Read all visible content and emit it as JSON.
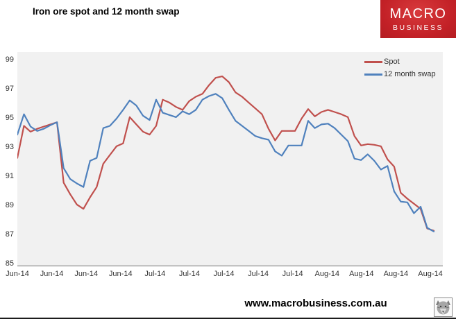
{
  "header": {
    "title": "Iron ore spot and 12 month swap"
  },
  "logo": {
    "line1": "MACRO",
    "line2": "BUSINESS",
    "bg_color": "#C32127",
    "text_color": "#FFFFFF"
  },
  "chart_data": {
    "type": "line",
    "title": "Iron ore spot and 12 month swap",
    "xlabel": "",
    "ylabel": "",
    "ylim": [
      85,
      99
    ],
    "yticks": [
      99,
      97,
      95,
      93,
      91,
      89,
      87,
      85
    ],
    "grid": false,
    "plot_bg": "#F1F1F1",
    "axis_color": "#6E6E6E",
    "legend_position": "top-right-inside",
    "x_labels": [
      "Jun-14",
      "Jun-14",
      "Jun-14",
      "Jun-14",
      "Jul-14",
      "Jul-14",
      "Jul-14",
      "Jul-14",
      "Jul-14",
      "Aug-14",
      "Aug-14",
      "Aug-14",
      "Aug-14"
    ],
    "series": [
      {
        "name": "Spot",
        "color": "#C0504D",
        "values": [
          92.3,
          94.5,
          94.1,
          94.3,
          94.45,
          94.6,
          94.75,
          90.6,
          89.8,
          89.1,
          88.8,
          89.6,
          90.3,
          91.9,
          92.5,
          93.1,
          93.3,
          95.1,
          94.6,
          94.1,
          93.9,
          94.5,
          96.3,
          96.1,
          95.8,
          95.6,
          96.2,
          96.5,
          96.7,
          97.3,
          97.8,
          97.9,
          97.5,
          96.8,
          96.5,
          96.1,
          95.7,
          95.3,
          94.3,
          93.5,
          94.15,
          94.15,
          94.15,
          95.0,
          95.65,
          95.15,
          95.45,
          95.6,
          95.45,
          95.3,
          95.1,
          93.8,
          93.15,
          93.25,
          93.2,
          93.1,
          92.2,
          91.7,
          89.9,
          89.5,
          89.15,
          88.8,
          87.45,
          87.3
        ]
      },
      {
        "name": "12 month swap",
        "color": "#4F81BD",
        "values": [
          93.9,
          95.3,
          94.45,
          94.15,
          94.3,
          94.55,
          94.75,
          91.6,
          90.85,
          90.55,
          90.3,
          92.1,
          92.3,
          94.35,
          94.5,
          95.0,
          95.6,
          96.25,
          95.9,
          95.2,
          94.9,
          96.3,
          95.4,
          95.25,
          95.1,
          95.5,
          95.3,
          95.6,
          96.3,
          96.55,
          96.7,
          96.4,
          95.6,
          94.85,
          94.5,
          94.15,
          93.8,
          93.65,
          93.55,
          92.75,
          92.45,
          93.15,
          93.15,
          93.15,
          94.85,
          94.35,
          94.6,
          94.65,
          94.35,
          93.9,
          93.45,
          92.25,
          92.15,
          92.55,
          92.1,
          91.5,
          91.75,
          90.0,
          89.3,
          89.25,
          88.5,
          88.95,
          87.5,
          87.25
        ]
      }
    ]
  },
  "footer": {
    "url": "www.macrobusiness.com.au",
    "icon": "wolf-logo"
  }
}
